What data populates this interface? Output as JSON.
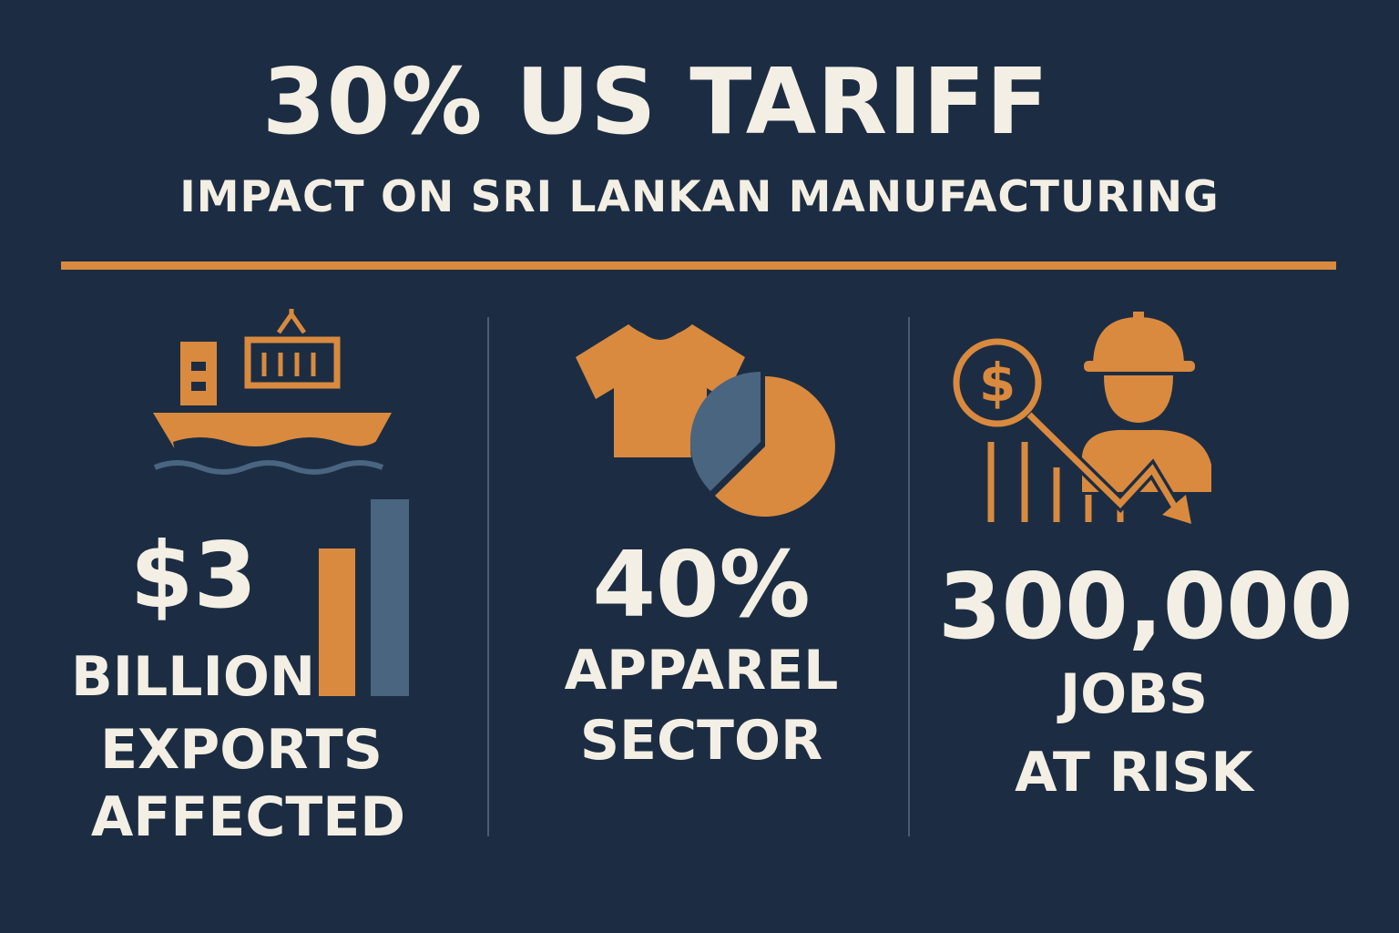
{
  "header": {
    "title": "30% US TARIFF",
    "subtitle": "IMPACT ON SRI LANKAN MANUFACTURING"
  },
  "colors": {
    "background": "#1c2d43",
    "accent_orange": "#d98a3e",
    "accent_slate": "#4a6580",
    "text": "#f4efe4"
  },
  "stats": [
    {
      "icon": "cargo-ship-icon",
      "value": "$3",
      "label_lines": [
        "BILLION",
        "EXPORTS",
        "AFFECTED"
      ]
    },
    {
      "icon": "tshirt-pie-chart-icon",
      "value": "40%",
      "label_lines": [
        "APPAREL",
        "SECTOR"
      ]
    },
    {
      "icon": "worker-declining-chart-icon",
      "value": "300,000",
      "label_lines": [
        "JOBS",
        "AT RISK"
      ]
    }
  ]
}
